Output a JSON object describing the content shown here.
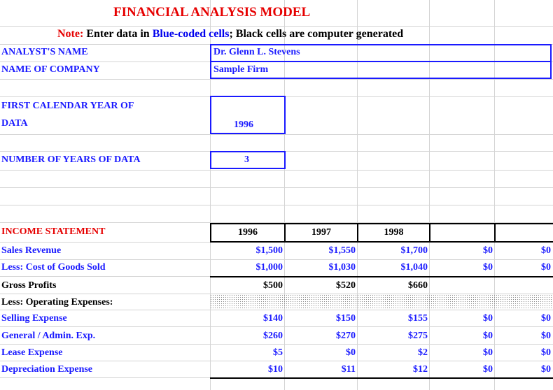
{
  "sheet": {
    "title": "FINANCIAL ANALYSIS MODEL",
    "note_prefix": "Note:",
    "note_enter": "Enter data in",
    "note_blue": "Blue-coded cells",
    "note_rest": "; Black cells are computer generated"
  },
  "inputs": {
    "analyst_label": "ANALYST'S NAME",
    "analyst_value": "Dr. Glenn L. Stevens",
    "company_label": "NAME OF COMPANY",
    "company_value": "Sample Firm",
    "first_year_label_1": "FIRST CALENDAR YEAR OF",
    "first_year_label_2": "DATA",
    "first_year_value": "1996",
    "num_years_label": "NUMBER OF YEARS OF DATA",
    "num_years_value": "3"
  },
  "income": {
    "heading": "INCOME STATEMENT",
    "years": [
      "1996",
      "1997",
      "1998",
      "",
      ""
    ],
    "rows": [
      {
        "label": "Sales Revenue",
        "values": [
          "$1,500",
          "$1,550",
          "$1,700",
          "$0",
          "$0"
        ]
      },
      {
        "label": "Less:  Cost of Goods Sold",
        "values": [
          "$1,000",
          "$1,030",
          "$1,040",
          "$0",
          "$0"
        ]
      },
      {
        "label": "Gross Profits",
        "values": [
          "$500",
          "$520",
          "$660",
          "",
          ""
        ]
      },
      {
        "label": "Less: Operating Expenses:",
        "values": [
          "",
          "",
          "",
          "",
          ""
        ]
      },
      {
        "label": "Selling Expense",
        "values": [
          "$140",
          "$150",
          "$155",
          "$0",
          "$0"
        ]
      },
      {
        "label": "General / Admin. Exp.",
        "values": [
          "$260",
          "$270",
          "$275",
          "$0",
          "$0"
        ]
      },
      {
        "label": "Lease Expense",
        "values": [
          "$5",
          "$0",
          "$2",
          "$0",
          "$0"
        ]
      },
      {
        "label": "Depreciation Expense",
        "values": [
          "$10",
          "$11",
          "$12",
          "$0",
          "$0"
        ]
      }
    ]
  }
}
